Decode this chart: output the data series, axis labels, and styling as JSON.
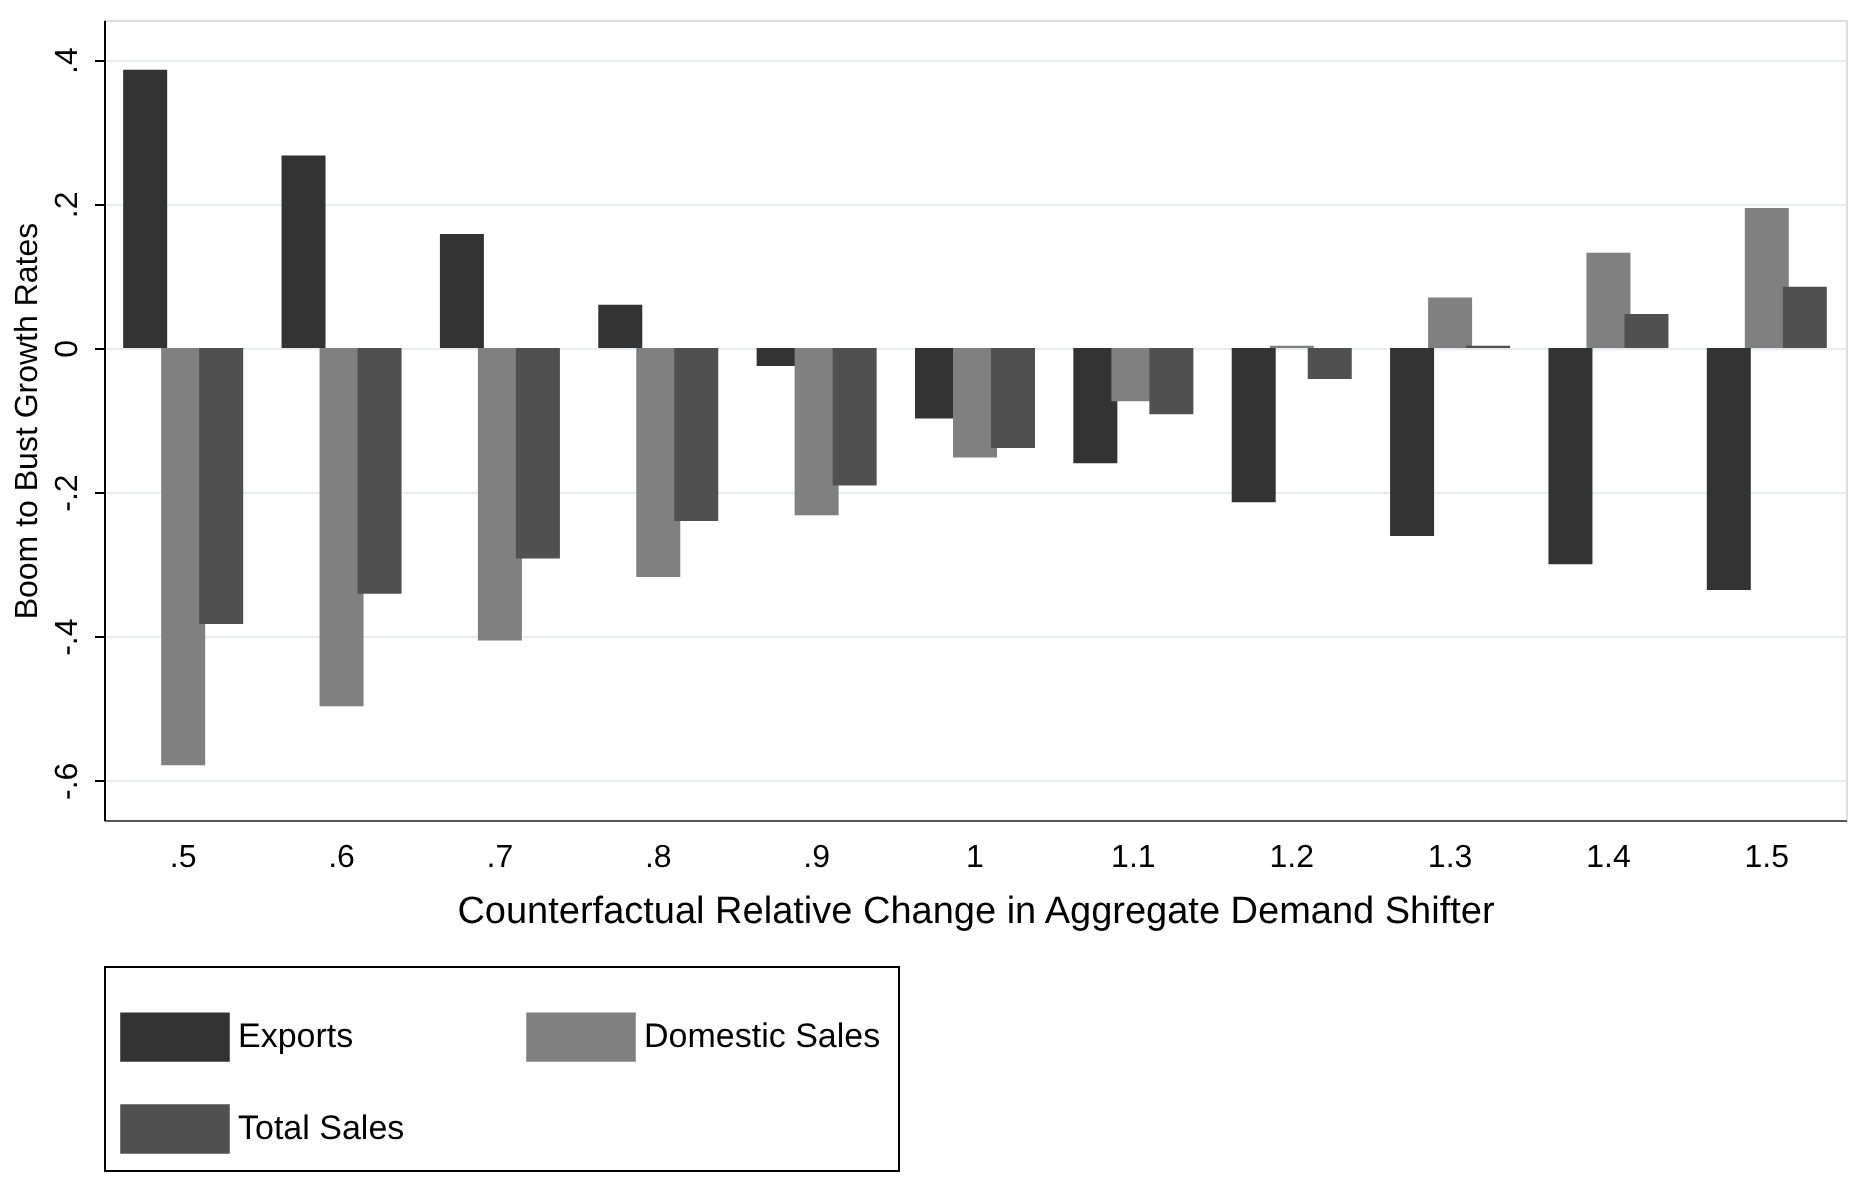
{
  "chart_data": {
    "type": "bar",
    "xlabel": "Counterfactual Relative Change in Aggregate Demand Shifter",
    "ylabel": "Boom to Bust Growth Rates",
    "categories": [
      ".5",
      ".6",
      ".7",
      ".8",
      ".9",
      "1",
      "1.1",
      "1.2",
      "1.3",
      "1.4",
      "1.5"
    ],
    "series": [
      {
        "name": "Exports",
        "color": "#333333",
        "values": [
          0.386,
          0.267,
          0.158,
          0.06,
          -0.025,
          -0.098,
          -0.16,
          -0.214,
          -0.261,
          -0.3,
          -0.336
        ]
      },
      {
        "name": "Domestic Sales",
        "color": "#808080",
        "values": [
          -0.579,
          -0.497,
          -0.406,
          -0.318,
          -0.232,
          -0.152,
          -0.074,
          0.003,
          0.07,
          0.132,
          0.194
        ]
      },
      {
        "name": "Total Sales",
        "color": "#505050",
        "values": [
          -0.383,
          -0.341,
          -0.292,
          -0.24,
          -0.191,
          -0.139,
          -0.092,
          -0.043,
          0.003,
          0.047,
          0.085
        ]
      }
    ],
    "ylim": [
      -0.655,
      0.455
    ],
    "yticks": [
      {
        "value": -0.6,
        "label": "-.6"
      },
      {
        "value": -0.4,
        "label": "-.4"
      },
      {
        "value": -0.2,
        "label": "-.2"
      },
      0,
      {
        "value": 0.2,
        "label": ".2"
      },
      {
        "value": 0.4,
        "label": ".4"
      }
    ],
    "grid": "y",
    "legend": "bottom"
  }
}
